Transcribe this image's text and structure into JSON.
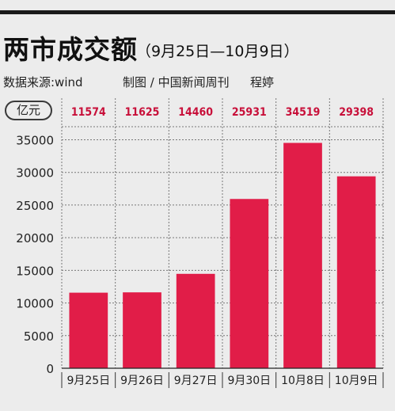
{
  "header": {
    "title": "两市成交额",
    "subtitle": "（9月25日—10月9日）",
    "source": "数据来源:wind",
    "maker": "制图 / 中国新闻周刊",
    "author": "程婷"
  },
  "colors": {
    "bar": "#e11d48",
    "value_label": "#c8103a",
    "background": "#ececec",
    "grid": "#777777"
  },
  "chart_data": {
    "type": "bar",
    "title": "两市成交额",
    "subtitle": "（9月25日—10月9日）",
    "unit": "亿元",
    "categories": [
      "9月25日",
      "9月26日",
      "9月27日",
      "9月30日",
      "10月8日",
      "10月9日"
    ],
    "values": [
      11574,
      11625,
      14460,
      25931,
      34519,
      29398
    ],
    "value_labels": [
      "11574",
      "11625",
      "14460",
      "25931",
      "34519",
      "29398"
    ],
    "y_ticks": [
      0,
      5000,
      10000,
      15000,
      20000,
      25000,
      30000,
      35000
    ],
    "y_tick_labels": [
      "0",
      "5000",
      "10000",
      "15000",
      "20000",
      "25000",
      "30000",
      "35000"
    ],
    "ylim": [
      0,
      37000
    ],
    "grid": true,
    "legend": "none"
  }
}
